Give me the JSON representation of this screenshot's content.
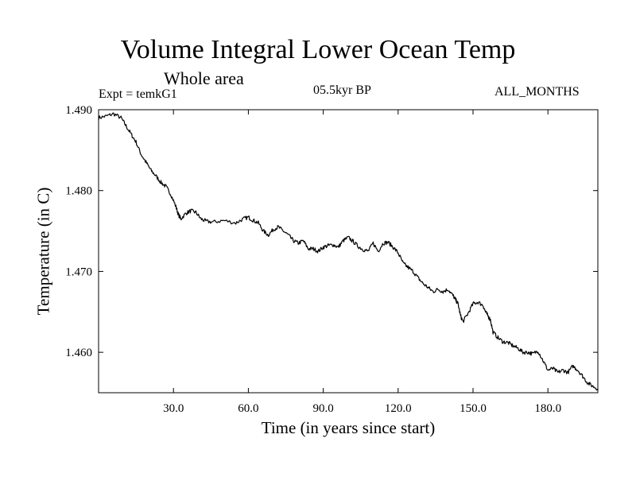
{
  "chart_data": {
    "type": "line",
    "title": "Volume Integral Lower Ocean Temp",
    "subtitle": "Whole area",
    "expt_label": "Expt = temkG1",
    "period_label": "05.5kyr BP",
    "months_label": "ALL_MONTHS",
    "xlabel": "Time (in years since start)",
    "ylabel": "Temperature (in C)",
    "xlim": [
      0,
      200
    ],
    "ylim": [
      1.455,
      1.49
    ],
    "xticks": [
      30,
      60,
      90,
      120,
      150,
      180
    ],
    "xtick_labels": [
      "30.0",
      "60.0",
      "90.0",
      "120.0",
      "150.0",
      "180.0"
    ],
    "yticks": [
      1.46,
      1.47,
      1.48,
      1.49
    ],
    "ytick_labels": [
      "1.460",
      "1.470",
      "1.480",
      "1.490"
    ],
    "series": [
      {
        "name": "temkG1",
        "color": "#000000",
        "x": [
          0,
          3,
          6,
          9,
          11,
          13,
          15,
          17,
          19,
          21,
          23,
          25,
          27,
          29,
          31,
          32,
          33,
          35,
          37,
          39,
          41,
          43,
          46,
          50,
          55,
          58,
          60,
          62,
          64,
          66,
          68,
          70,
          72,
          74,
          76,
          78,
          80,
          82,
          84,
          86,
          88,
          90,
          92,
          94,
          96,
          98,
          100,
          102,
          104,
          106,
          108,
          110,
          112,
          114,
          116,
          118,
          120,
          122,
          124,
          126,
          128,
          130,
          132,
          134,
          136,
          138,
          140,
          142,
          143,
          144,
          145,
          146,
          148,
          150,
          152,
          154,
          155,
          156,
          157,
          158,
          160,
          162,
          164,
          166,
          168,
          170,
          172,
          174,
          176,
          178,
          180,
          182,
          184,
          186,
          188,
          190,
          192,
          194,
          196,
          198,
          200
        ],
        "y": [
          1.489,
          1.4892,
          1.4895,
          1.489,
          1.488,
          1.487,
          1.486,
          1.4845,
          1.4835,
          1.4825,
          1.4818,
          1.481,
          1.4805,
          1.4795,
          1.478,
          1.477,
          1.4765,
          1.4772,
          1.4775,
          1.4773,
          1.4765,
          1.4762,
          1.4761,
          1.4763,
          1.476,
          1.4765,
          1.4767,
          1.4763,
          1.476,
          1.475,
          1.4745,
          1.4752,
          1.4755,
          1.475,
          1.4745,
          1.4738,
          1.4735,
          1.4738,
          1.4728,
          1.4728,
          1.4725,
          1.473,
          1.4732,
          1.4733,
          1.473,
          1.4738,
          1.4742,
          1.4737,
          1.4731,
          1.4727,
          1.4725,
          1.4735,
          1.4725,
          1.4735,
          1.4736,
          1.473,
          1.4723,
          1.471,
          1.4705,
          1.47,
          1.4692,
          1.4685,
          1.468,
          1.4675,
          1.4678,
          1.4675,
          1.4678,
          1.467,
          1.4665,
          1.466,
          1.4645,
          1.4638,
          1.4648,
          1.466,
          1.4662,
          1.4658,
          1.465,
          1.4645,
          1.464,
          1.4625,
          1.4618,
          1.4613,
          1.4612,
          1.4608,
          1.4605,
          1.46,
          1.46,
          1.4598,
          1.4602,
          1.459,
          1.4578,
          1.458,
          1.4575,
          1.4578,
          1.4575,
          1.4583,
          1.4578,
          1.457,
          1.4562,
          1.4558,
          1.4555
        ]
      }
    ]
  }
}
